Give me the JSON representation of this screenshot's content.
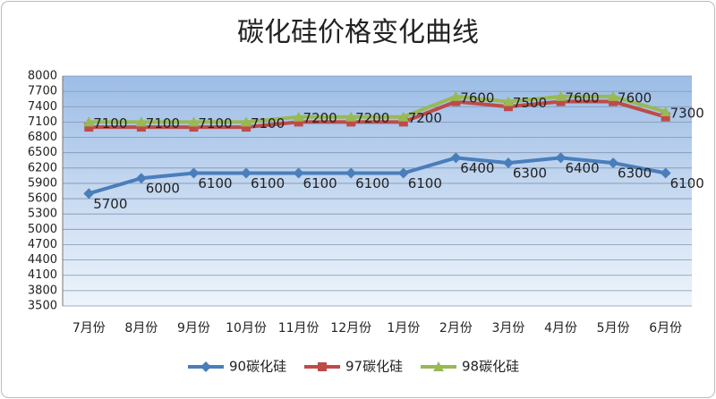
{
  "chart_data": {
    "type": "line",
    "title": "碳化硅价格变化曲线",
    "categories": [
      "7月份",
      "8月份",
      "9月份",
      "10月份",
      "11月份",
      "12月份",
      "1月份",
      "2月份",
      "3月份",
      "4月份",
      "5月份",
      "6月份"
    ],
    "series": [
      {
        "name": "90碳化硅",
        "color": "#4a7ebb",
        "values": [
          5700,
          6000,
          6100,
          6100,
          6100,
          6100,
          6100,
          6400,
          6300,
          6400,
          6300,
          6100
        ],
        "labels": true
      },
      {
        "name": "97碳化硅",
        "color": "#be4b48",
        "values": [
          7000,
          7000,
          7000,
          7000,
          7100,
          7100,
          7100,
          7500,
          7400,
          7500,
          7500,
          7200
        ],
        "labels": false
      },
      {
        "name": "98碳化硅",
        "color": "#98b954",
        "values": [
          7100,
          7100,
          7100,
          7100,
          7200,
          7200,
          7200,
          7600,
          7500,
          7600,
          7600,
          7300
        ],
        "labels": true
      }
    ],
    "ylim": [
      3500,
      8000
    ],
    "yticks": [
      3500,
      3800,
      4100,
      4400,
      4700,
      5000,
      5300,
      5600,
      5900,
      6200,
      6500,
      6800,
      7100,
      7400,
      7700,
      8000
    ],
    "grid": true,
    "legend": "bottom"
  }
}
